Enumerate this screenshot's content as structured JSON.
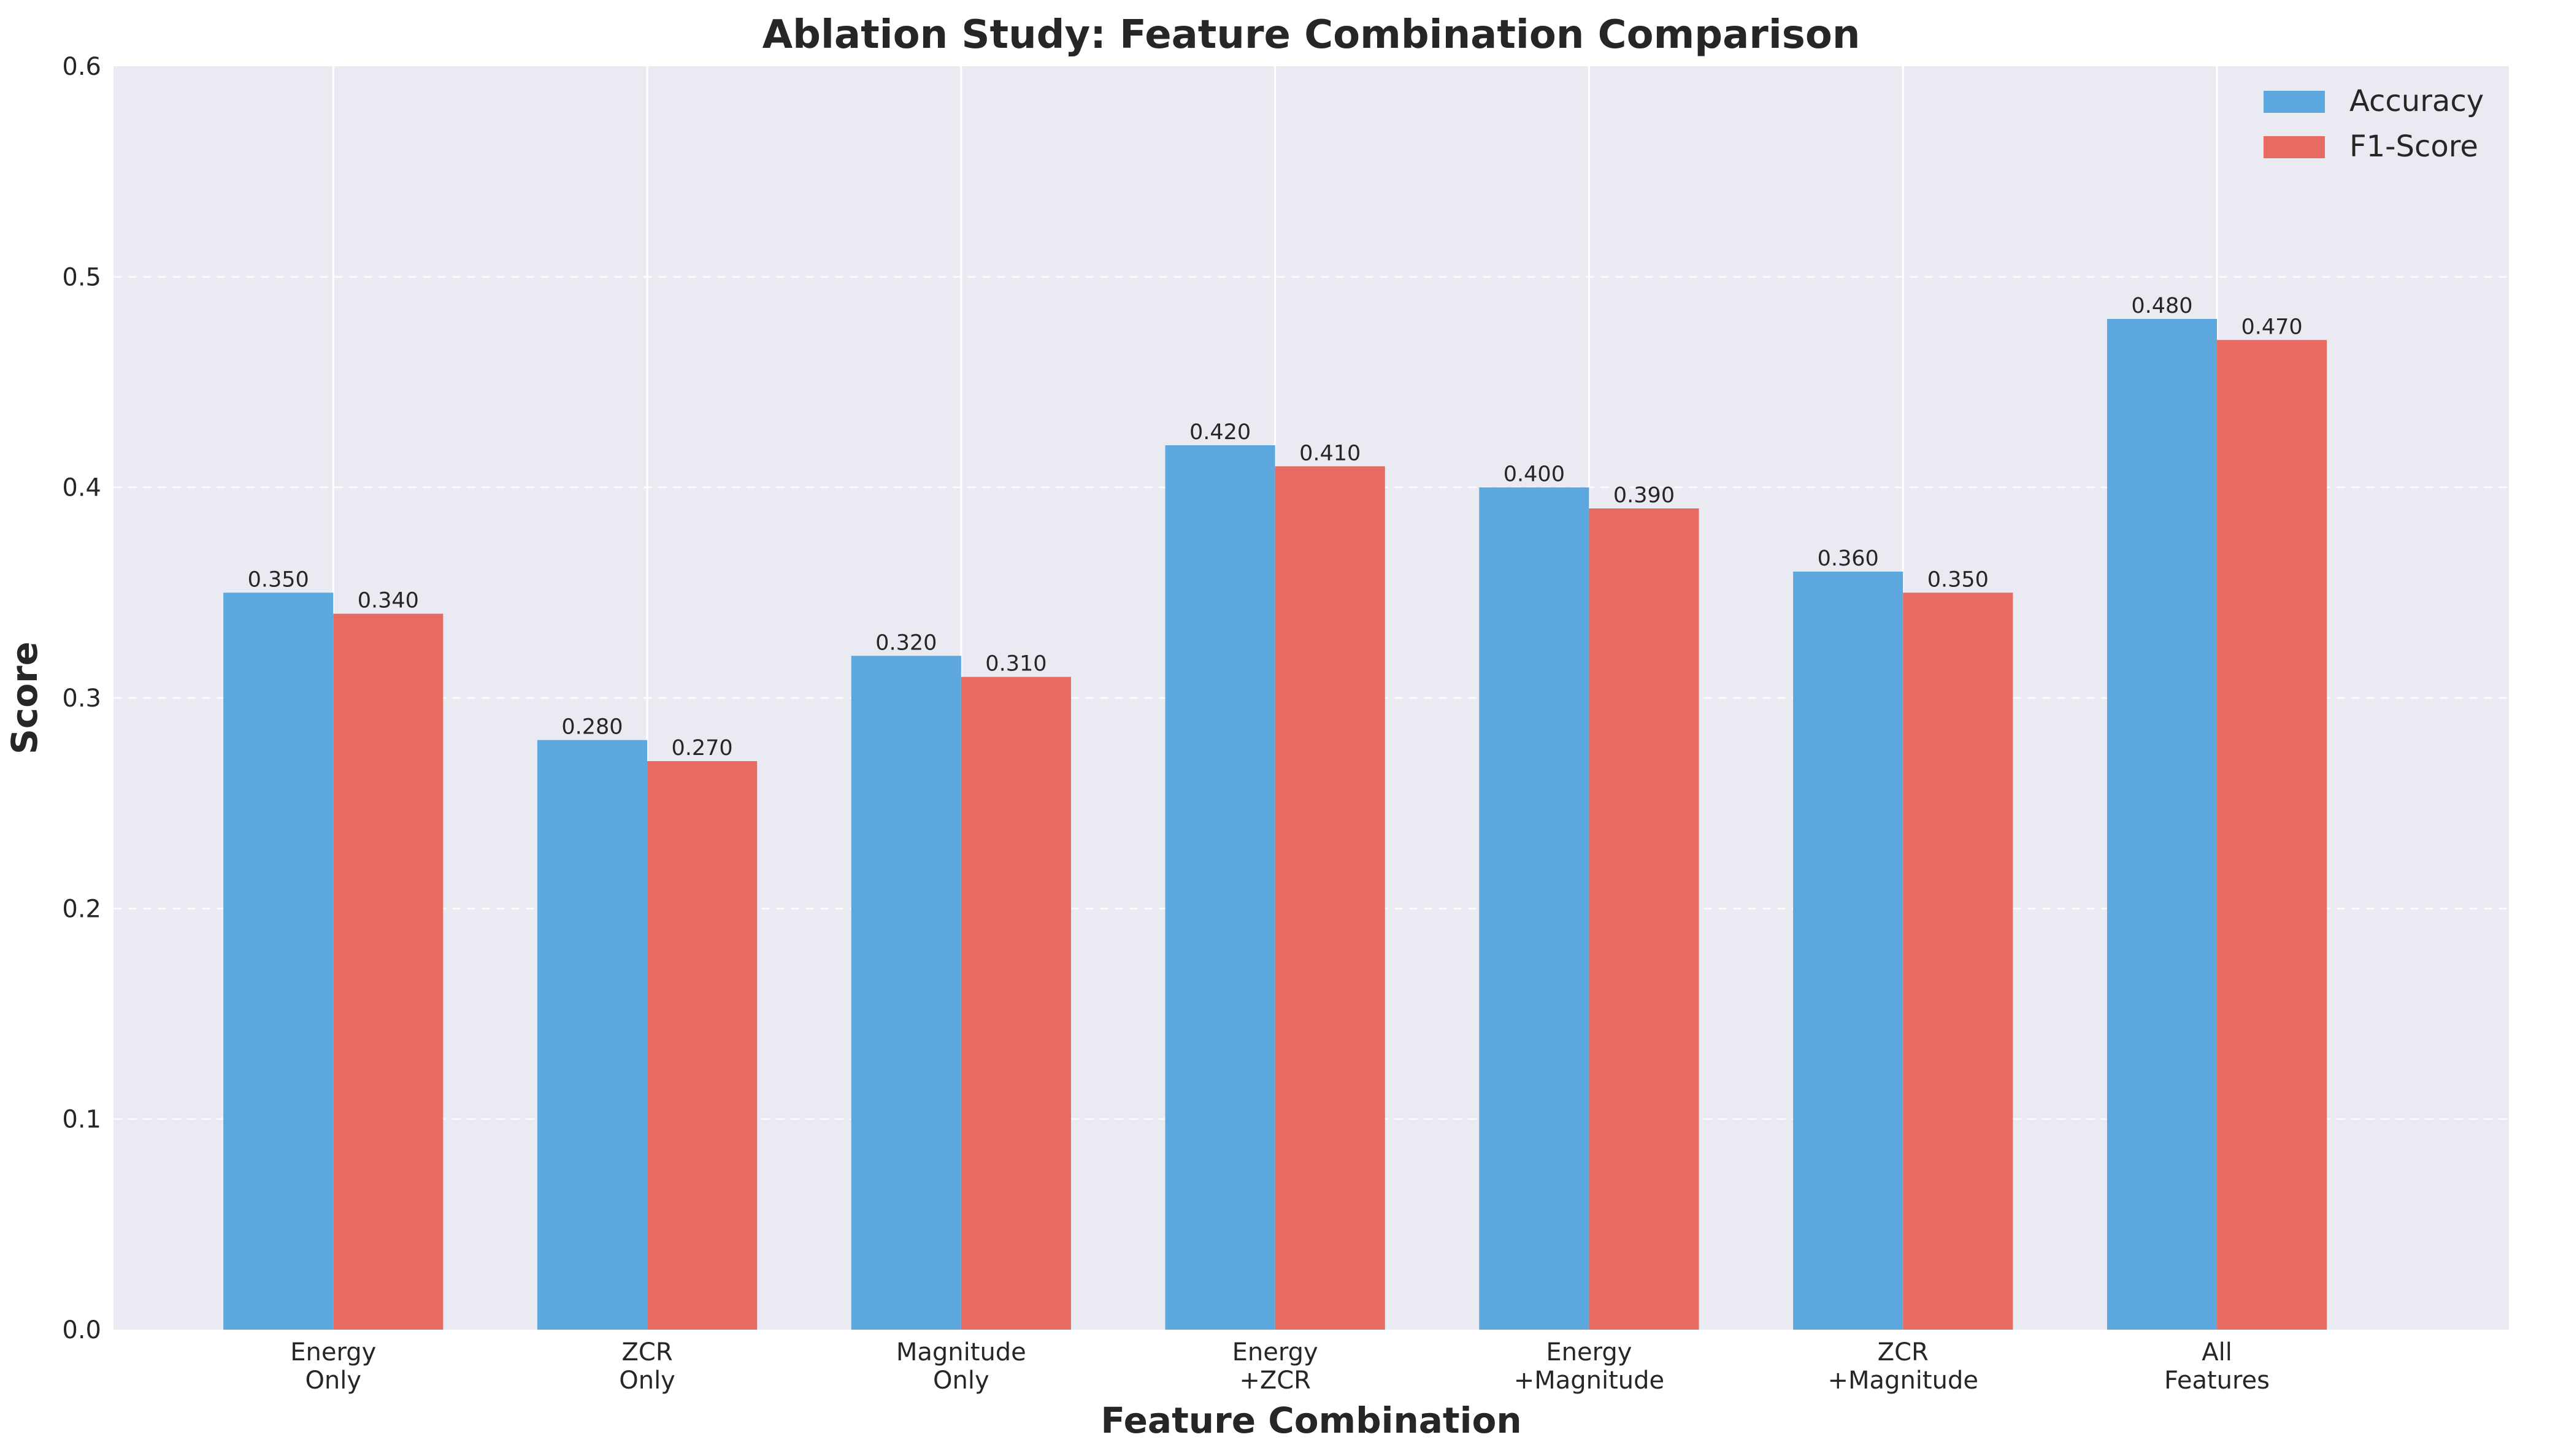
{
  "colors": {
    "plot_background": "#EAEAF2",
    "accuracy": "#5BA7DE",
    "f1": "#E76B62",
    "grid": "#FFFFFF",
    "text": "#262626"
  },
  "chart_data": {
    "type": "bar",
    "title": "Ablation Study: Feature Combination Comparison",
    "xlabel": "Feature Combination",
    "ylabel": "Score",
    "ylim": [
      0,
      0.6
    ],
    "yticks": [
      "0.0",
      "0.1",
      "0.2",
      "0.3",
      "0.4",
      "0.5",
      "0.6"
    ],
    "categories": [
      [
        "Energy",
        "Only"
      ],
      [
        "ZCR",
        "Only"
      ],
      [
        "Magnitude",
        "Only"
      ],
      [
        "Energy",
        "+ZCR"
      ],
      [
        "Energy",
        "+Magnitude"
      ],
      [
        "ZCR",
        "+Magnitude"
      ],
      [
        "All",
        "Features"
      ]
    ],
    "series": [
      {
        "name": "Accuracy",
        "values": [
          0.35,
          0.28,
          0.32,
          0.42,
          0.4,
          0.36,
          0.48
        ],
        "labels": [
          "0.350",
          "0.280",
          "0.320",
          "0.420",
          "0.400",
          "0.360",
          "0.480"
        ]
      },
      {
        "name": "F1-Score",
        "values": [
          0.34,
          0.27,
          0.31,
          0.41,
          0.39,
          0.35,
          0.47
        ],
        "labels": [
          "0.340",
          "0.270",
          "0.310",
          "0.410",
          "0.390",
          "0.350",
          "0.470"
        ]
      }
    ],
    "grid": true,
    "legend_position": "top-right"
  }
}
